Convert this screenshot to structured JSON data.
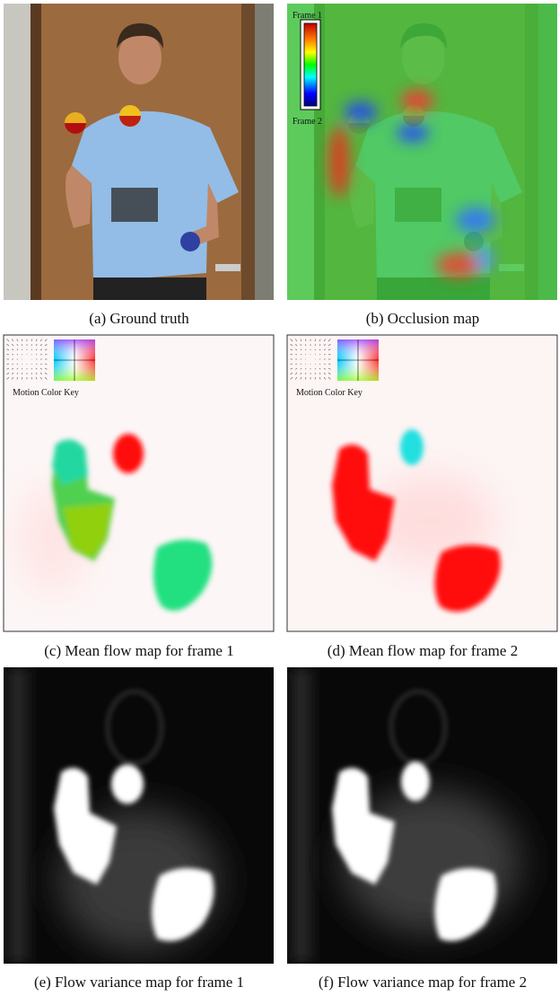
{
  "panels": [
    {
      "caption": "(a) Ground truth"
    },
    {
      "caption": "(b) Occlusion map",
      "legend": {
        "top": "Frame 1",
        "bottom": "Frame 2"
      }
    },
    {
      "caption": "(c) Mean flow map for frame 1",
      "key_label": "Motion Color Key"
    },
    {
      "caption": "(d) Mean flow map for frame 2",
      "key_label": "Motion Color Key"
    },
    {
      "caption": "(e) Flow variance map for frame 1"
    },
    {
      "caption": "(f) Flow variance map for frame 2"
    }
  ]
}
